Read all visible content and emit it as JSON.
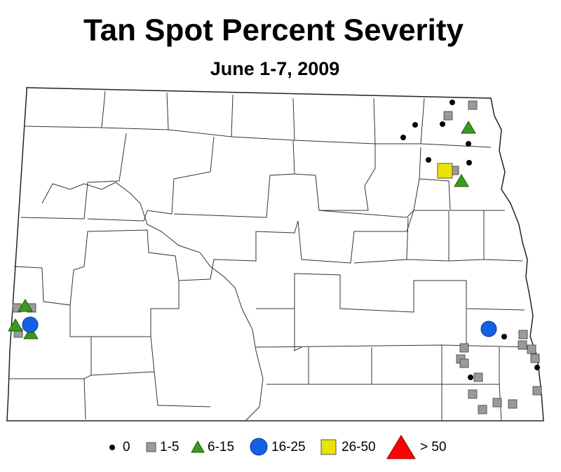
{
  "title": "Tan Spot Percent Severity",
  "subtitle": "June 1-7, 2009",
  "legend": {
    "items": [
      {
        "label": "0"
      },
      {
        "label": "1-5"
      },
      {
        "label": "6-15"
      },
      {
        "label": "16-25"
      },
      {
        "label": "26-50"
      },
      {
        "label": "> 50"
      }
    ]
  }
}
